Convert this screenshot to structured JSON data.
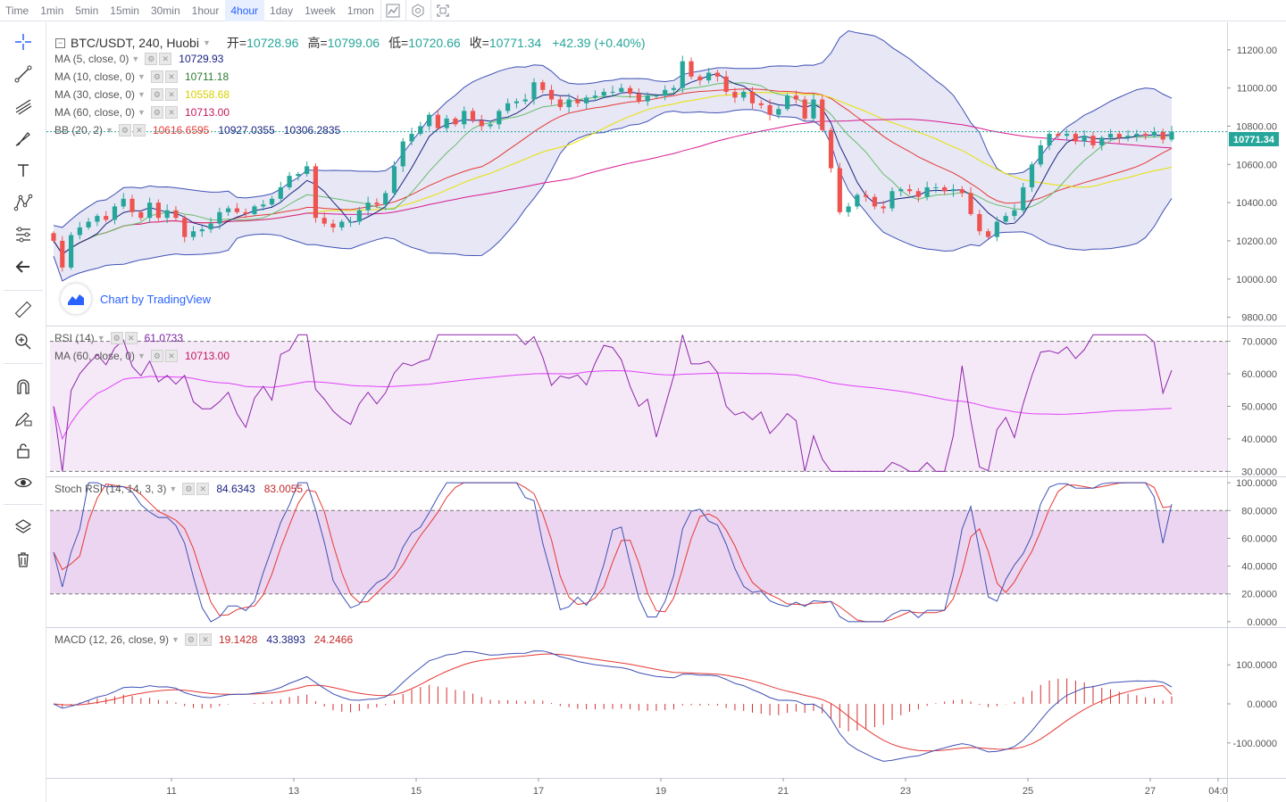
{
  "toolbar": {
    "timeframes": [
      "Time",
      "1min",
      "5min",
      "15min",
      "30min",
      "1hour",
      "4hour",
      "1day",
      "1week",
      "1mon"
    ],
    "active_timeframe": "4hour",
    "icons": [
      "indicator-icon",
      "settings-icon",
      "fullscreen-icon"
    ]
  },
  "left_tools": [
    "crosshair-icon",
    "trend-line-icon",
    "fib-icon",
    "brush-icon",
    "text-icon",
    "pattern-icon",
    "measure-icon",
    "back-arrow-icon",
    "ruler-icon",
    "zoom-icon",
    "magnet-icon",
    "lock-draw-icon",
    "lock-icon",
    "eye-icon",
    "layers-icon",
    "trash-icon"
  ],
  "header": {
    "symbol": "BTC/USDT, 240, Huobi",
    "open_label": "开=",
    "open": "10728.96",
    "high_label": "高=",
    "high": "10799.06",
    "low_label": "低=",
    "low": "10720.66",
    "close_label": "收=",
    "close": "10771.34",
    "change": "+42.39 (+0.40%)"
  },
  "brand": "Chart by TradingView",
  "legends": {
    "ma5": {
      "name": "MA (5, close, 0)",
      "value": "10729.93",
      "color": "#1a237e"
    },
    "ma10": {
      "name": "MA (10, close, 0)",
      "value": "10711.18",
      "color": "#2e7d32"
    },
    "ma30": {
      "name": "MA (30, close, 0)",
      "value": "10558.68",
      "color": "#e8e200"
    },
    "ma60": {
      "name": "MA (60, close, 0)",
      "value": "10713.00",
      "color": "#c2185b"
    },
    "bb": {
      "name": "BB (20, 2)",
      "values": [
        "10616.6595",
        "10927.0355",
        "10306.2835"
      ],
      "colors": [
        "#e53935",
        "#1a237e",
        "#1a237e"
      ]
    },
    "rsi": {
      "name": "RSI (14)",
      "value": "61.0733",
      "color": "#7b1fa2"
    },
    "rsi_ma": {
      "name": "MA (60, close, 0)",
      "value": "10713.00",
      "color": "#c2185b"
    },
    "stoch": {
      "name": "Stoch RSI (14, 14, 3, 3)",
      "values": [
        "84.6343",
        "83.0055"
      ],
      "colors": [
        "#1a237e",
        "#c62828"
      ]
    },
    "macd": {
      "name": "MACD (12, 26, close, 9)",
      "values": [
        "19.1428",
        "43.3893",
        "24.2466"
      ],
      "colors": [
        "#c62828",
        "#1a237e",
        "#c62828"
      ]
    }
  },
  "chart_data": {
    "type": "candlestick",
    "symbol": "BTC/USDT",
    "interval": "4h",
    "last_price": 10771.34,
    "last_price_label": "10771.34",
    "price_axis": {
      "labels": [
        "11200.00",
        "11000.00",
        "10800.00",
        "10600.00",
        "10400.00",
        "10200.00",
        "10000.00",
        "9800.00"
      ],
      "ylim": [
        9770,
        11330
      ]
    },
    "rsi_axis": {
      "labels": [
        "70.0000",
        "60.0000",
        "50.0000",
        "40.0000",
        "30.0000"
      ],
      "ylim": [
        29,
        74
      ],
      "bands": [
        30,
        70
      ]
    },
    "stoch_axis": {
      "labels": [
        "100.0000",
        "80.0000",
        "60.0000",
        "40.0000",
        "20.0000",
        "0.0000"
      ],
      "ylim": [
        -2,
        102
      ],
      "bands": [
        20,
        80
      ]
    },
    "macd_axis": {
      "labels": [
        "100.0000",
        "0.0000",
        "-100.0000"
      ],
      "ylim": [
        -185,
        185
      ]
    },
    "x_axis": {
      "labels": [
        "11",
        "13",
        "15",
        "17",
        "19",
        "21",
        "23",
        "25",
        "27",
        "04:0"
      ]
    },
    "closes": [
      10200,
      10060,
      10230,
      10270,
      10300,
      10330,
      10310,
      10380,
      10420,
      10350,
      10320,
      10400,
      10320,
      10360,
      10320,
      10220,
      10250,
      10260,
      10290,
      10350,
      10370,
      10350,
      10340,
      10380,
      10390,
      10420,
      10480,
      10540,
      10550,
      10590,
      10320,
      10290,
      10270,
      10300,
      10300,
      10360,
      10400,
      10390,
      10450,
      10590,
      10720,
      10760,
      10800,
      10860,
      10790,
      10840,
      10810,
      10880,
      10830,
      10800,
      10810,
      10880,
      10920,
      10930,
      10940,
      11030,
      10990,
      10940,
      10900,
      10940,
      10920,
      10950,
      10960,
      10980,
      10980,
      11000,
      10970,
      10930,
      10960,
      10960,
      10990,
      11000,
      11140,
      11060,
      11040,
      11080,
      11060,
      10980,
      10950,
      10980,
      10920,
      10910,
      10860,
      10890,
      10960,
      10940,
      10840,
      10940,
      10780,
      10580,
      10350,
      10380,
      10440,
      10430,
      10380,
      10370,
      10460,
      10470,
      10460,
      10430,
      10480,
      10480,
      10460,
      10470,
      10450,
      10340,
      10250,
      10220,
      10300,
      10330,
      10360,
      10480,
      10600,
      10700,
      10760,
      10750,
      10760,
      10720,
      10750,
      10700,
      10740,
      10760,
      10740,
      10750,
      10760,
      10750,
      10770,
      10730,
      10771
    ],
    "ma_series": [
      {
        "name": "MA (5, close, 0)",
        "last": 10729.93
      },
      {
        "name": "MA (10, close, 0)",
        "last": 10711.18
      },
      {
        "name": "MA (30, close, 0)",
        "last": 10558.68
      },
      {
        "name": "MA (60, close, 0)",
        "last": 10713.0
      }
    ],
    "bollinger": {
      "period": 20,
      "mult": 2,
      "mid": 10616.6595,
      "upper": 10927.0355,
      "lower": 10306.2835
    },
    "rsi": {
      "period": 14,
      "last": 61.0733
    },
    "stoch_rsi": {
      "k": 84.6343,
      "d": 83.0055
    },
    "macd": {
      "histogram": 19.1428,
      "macd": 43.3893,
      "signal": 24.2466
    }
  }
}
